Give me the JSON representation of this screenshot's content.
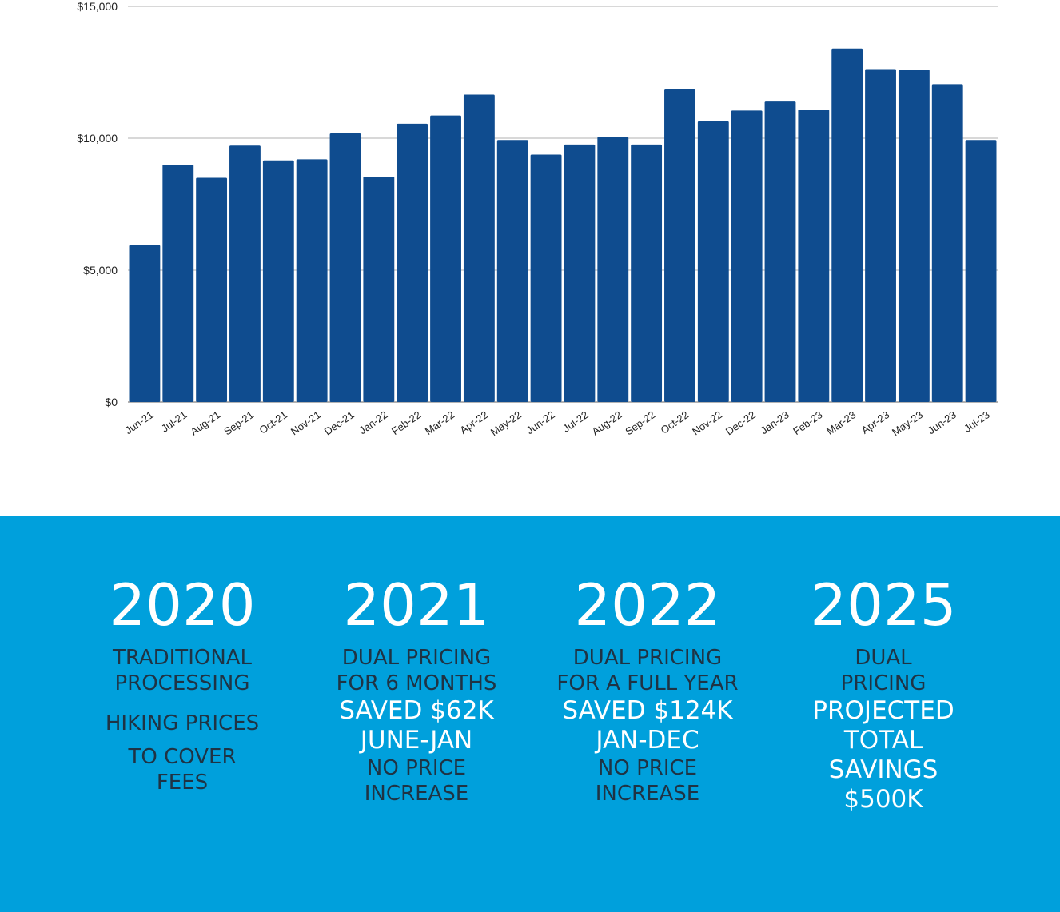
{
  "chart_data": {
    "type": "bar",
    "categories": [
      "Jun-21",
      "Jul-21",
      "Aug-21",
      "Sep-21",
      "Oct-21",
      "Nov-21",
      "Dec-21",
      "Jan-22",
      "Feb-22",
      "Mar-22",
      "Apr-22",
      "May-22",
      "Jun-22",
      "Jul-22",
      "Aug-22",
      "Sep-22",
      "Oct-22",
      "Nov-22",
      "Dec-22",
      "Jan-23",
      "Feb-23",
      "Mar-23",
      "Apr-23",
      "May-23",
      "Jun-23",
      "Jul-23"
    ],
    "values": [
      5950,
      9000,
      8500,
      9720,
      9160,
      9200,
      10180,
      8540,
      10550,
      10860,
      11650,
      9930,
      9380,
      9760,
      10050,
      9760,
      11880,
      10640,
      11050,
      11420,
      11090,
      13400,
      12620,
      12600,
      12050,
      9930
    ],
    "yticks": [
      "$15,000",
      "$10,000",
      "$5,000",
      "$0"
    ],
    "ylim": [
      0,
      15000
    ],
    "bar_color": "#0f4c8f",
    "grid": true,
    "legend": "none"
  },
  "timeline": [
    {
      "year": "2020",
      "lines": [
        {
          "text": "TRADITIONAL",
          "style": "dark"
        },
        {
          "text": "PROCESSING",
          "style": "dark"
        },
        {
          "text": "HIKING PRICES",
          "style": "dark",
          "gap": true
        },
        {
          "text": "TO COVER",
          "style": "dark",
          "gap2": true
        },
        {
          "text": "FEES",
          "style": "dark"
        }
      ]
    },
    {
      "year": "2021",
      "lines": [
        {
          "text": "DUAL PRICING",
          "style": "dark"
        },
        {
          "text": "FOR 6 MONTHS",
          "style": "dark"
        },
        {
          "text": "SAVED $62K",
          "style": "light"
        },
        {
          "text": "JUNE-JAN",
          "style": "light"
        },
        {
          "text": "NO PRICE",
          "style": "dark"
        },
        {
          "text": "INCREASE",
          "style": "dark"
        }
      ]
    },
    {
      "year": "2022",
      "lines": [
        {
          "text": "DUAL PRICING",
          "style": "dark"
        },
        {
          "text": "FOR A FULL YEAR",
          "style": "dark"
        },
        {
          "text": "SAVED $124K",
          "style": "light"
        },
        {
          "text": "JAN-DEC",
          "style": "light"
        },
        {
          "text": "NO PRICE",
          "style": "dark"
        },
        {
          "text": "INCREASE",
          "style": "dark"
        }
      ]
    },
    {
      "year": "2025",
      "lines": [
        {
          "text": "DUAL",
          "style": "dark"
        },
        {
          "text": "PRICING",
          "style": "dark"
        },
        {
          "text": "PROJECTED",
          "style": "light"
        },
        {
          "text": "TOTAL",
          "style": "light"
        },
        {
          "text": "SAVINGS",
          "style": "light"
        },
        {
          "text": "$500K",
          "style": "light"
        }
      ]
    }
  ],
  "colors": {
    "panel_bg": "#00a0dc",
    "dark_text": "#1f3344",
    "light_text": "#ffffff",
    "grid": "#cccccc"
  }
}
